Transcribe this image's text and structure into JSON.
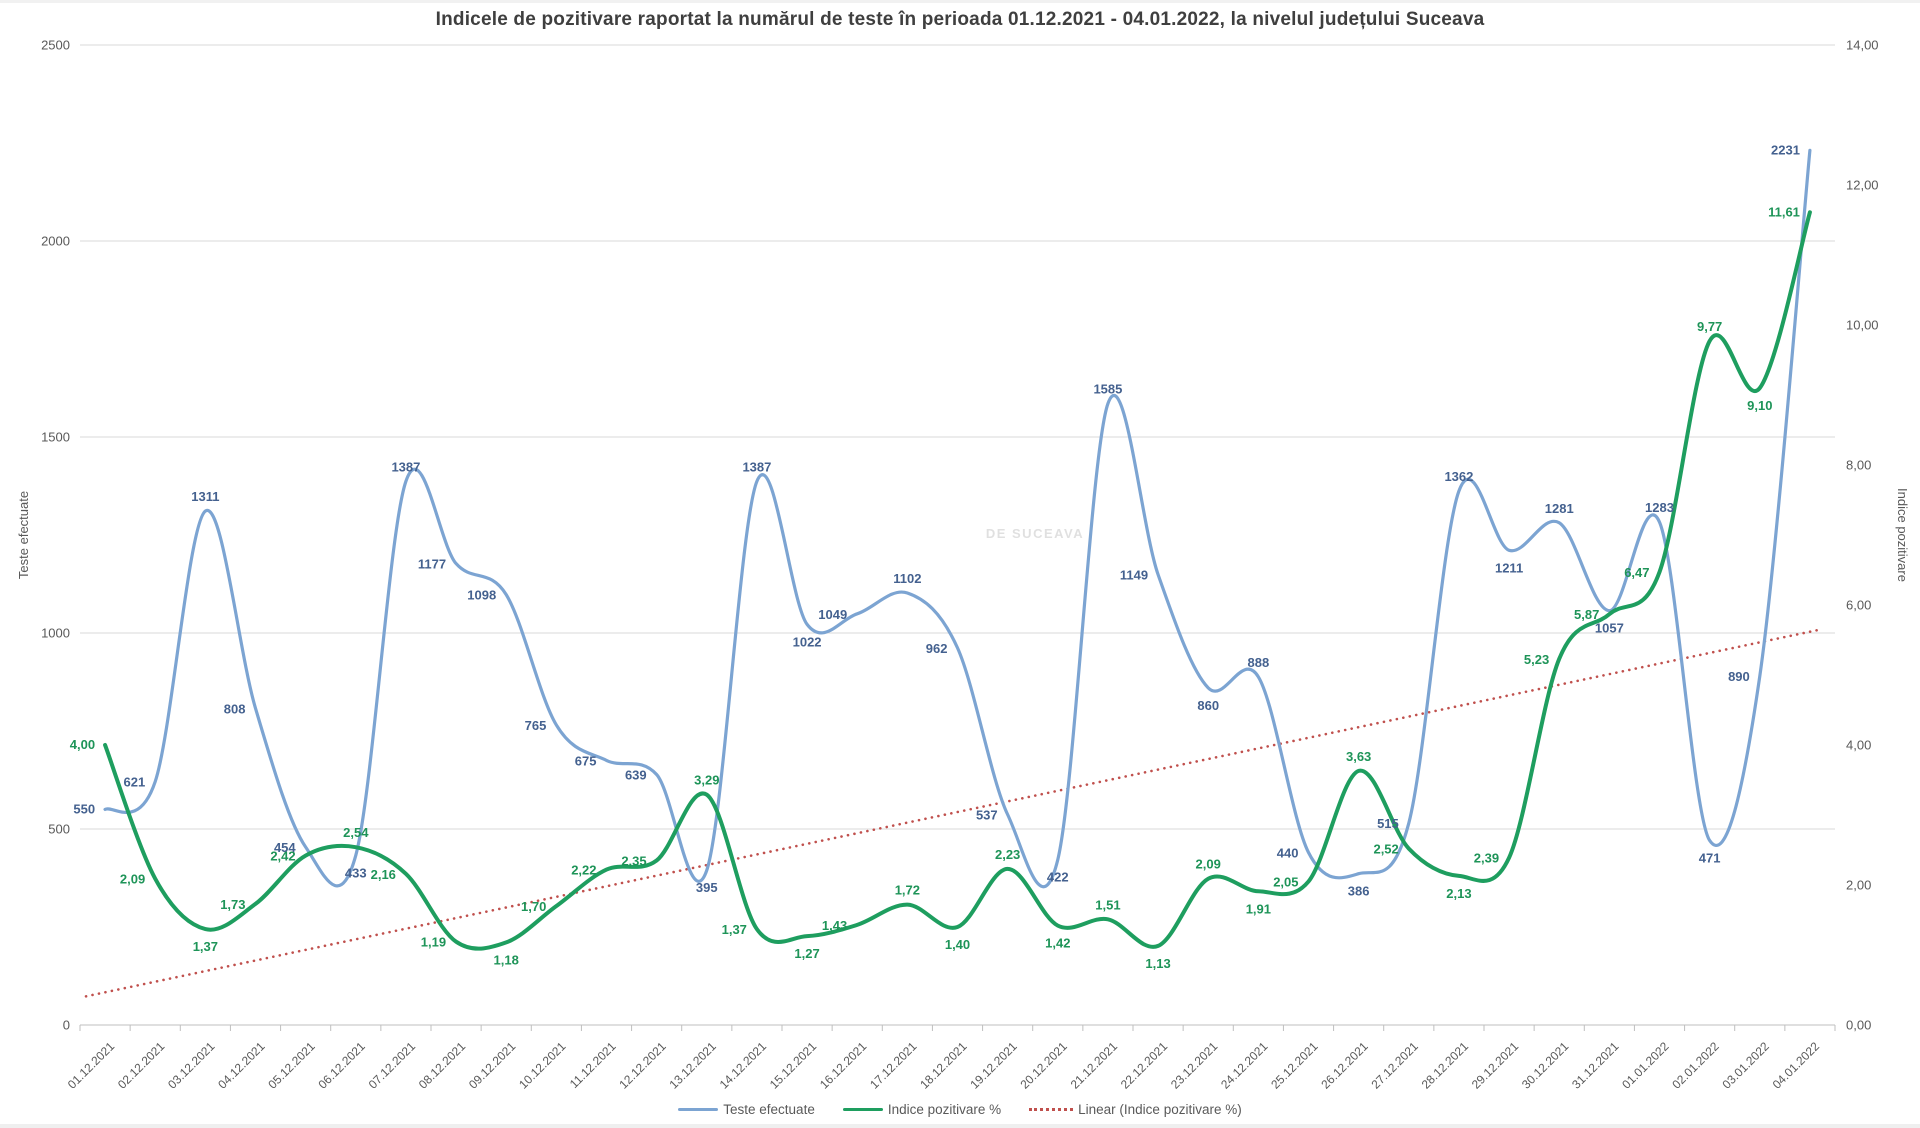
{
  "title": "Indicele de pozitivare raportat la numărul de teste în perioada 01.12.2021 - 04.01.2022, la nivelul județului Suceava",
  "watermark": "DE SUCEAVA",
  "axes": {
    "left": {
      "title": "Teste efectuate",
      "ticks": [
        "0",
        "500",
        "1000",
        "1500",
        "2000",
        "2500"
      ]
    },
    "right": {
      "title": "Indice pozitivare",
      "ticks": [
        "0,00",
        "2,00",
        "4,00",
        "6,00",
        "8,00",
        "10,00",
        "12,00",
        "14,00"
      ]
    }
  },
  "chart_data": {
    "type": "line",
    "title": "Indicele de pozitivare raportat la numărul de teste în perioada 01.12.2021 - 04.01.2022, la nivelul județului Suceava",
    "categories": [
      "01.12.2021",
      "02.12.2021",
      "03.12.2021",
      "04.12.2021",
      "05.12.2021",
      "06.12.2021",
      "07.12.2021",
      "08.12.2021",
      "09.12.2021",
      "10.12.2021",
      "11.12.2021",
      "12.12.2021",
      "13.12.2021",
      "14.12.2021",
      "15.12.2021",
      "16.12.2021",
      "17.12.2021",
      "18.12.2021",
      "19.12.2021",
      "20.12.2021",
      "21.12.2021",
      "22.12.2021",
      "23.12.2021",
      "24.12.2021",
      "25.12.2021",
      "26.12.2021",
      "27.12.2021",
      "28.12.2021",
      "29.12.2021",
      "30.12.2021",
      "31.12.2021",
      "01.01.2022",
      "02.01.2022",
      "03.01.2022",
      "04.01.2022"
    ],
    "series": [
      {
        "name": "Teste efectuate",
        "axis": "left",
        "style": "solid",
        "color": "#7ca4d2",
        "label_color": "#44618f",
        "values": [
          550,
          621,
          1311,
          808,
          454,
          433,
          1387,
          1177,
          1098,
          765,
          675,
          639,
          395,
          1387,
          1022,
          1049,
          1102,
          962,
          537,
          422,
          1585,
          1149,
          860,
          888,
          440,
          386,
          515,
          1362,
          1211,
          1281,
          1057,
          1283,
          471,
          890,
          2231
        ],
        "labels": [
          "550",
          "621",
          "1311",
          "808",
          "454",
          "433",
          "1387",
          "1177",
          "1098",
          "765",
          "675",
          "639",
          "395",
          "1387",
          "1022",
          "1049",
          "1102",
          "962",
          "537",
          "422",
          "1585",
          "1149",
          "860",
          "888",
          "440",
          "386",
          "515",
          "1362",
          "1211",
          "1281",
          "1057",
          "1283",
          "471",
          "890",
          "2231"
        ]
      },
      {
        "name": "Indice pozitivare %",
        "axis": "right",
        "style": "solid",
        "color": "#1e9e5f",
        "label_color": "#1e9458",
        "values": [
          4.0,
          2.09,
          1.37,
          1.73,
          2.42,
          2.54,
          2.16,
          1.19,
          1.18,
          1.7,
          2.22,
          2.35,
          3.29,
          1.37,
          1.27,
          1.43,
          1.72,
          1.4,
          2.23,
          1.42,
          1.51,
          1.13,
          2.09,
          1.91,
          2.05,
          3.63,
          2.52,
          2.13,
          2.39,
          5.23,
          5.87,
          6.47,
          9.77,
          9.1,
          11.61
        ],
        "labels": [
          "4,00",
          "2,09",
          "1,37",
          "1,73",
          "2,42",
          "2,54",
          "2,16",
          "1,19",
          "1,18",
          "1,70",
          "2,22",
          "2,35",
          "3,29",
          "1,37",
          "1,27",
          "1,43",
          "1,72",
          "1,40",
          "2,23",
          "1,42",
          "1,51",
          "1,13",
          "2,09",
          "1,91",
          "2,05",
          "3,63",
          "2,52",
          "2,13",
          "2,39",
          "5,23",
          "5,87",
          "6,47",
          "9,77",
          "9,10",
          "11,61"
        ]
      },
      {
        "name": "Linear (Indice pozitivare %)",
        "axis": "right",
        "style": "dotted",
        "type": "linear_trend_of_series_1",
        "color": "#c0504d"
      }
    ],
    "ylim_left": [
      0,
      2500
    ],
    "ylim_right": [
      0,
      14
    ],
    "xlabel": "",
    "ylabel_left": "Teste efectuate",
    "ylabel_right": "Indice pozitivare",
    "grid": true,
    "legend_position": "bottom"
  }
}
